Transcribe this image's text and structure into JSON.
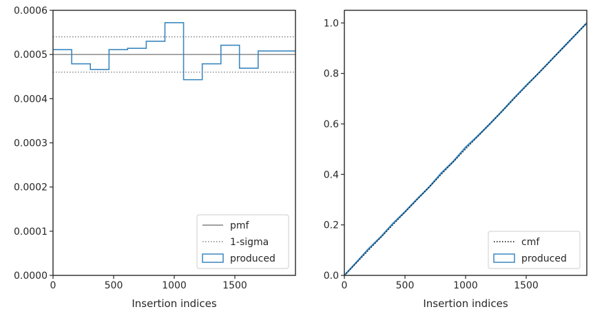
{
  "colors": {
    "produced": "#3a87bf",
    "pmf": "#808080",
    "sigma": "#808080",
    "cmf": "#000000",
    "axes": "#262626"
  },
  "chart_data": [
    {
      "type": "step",
      "xlabel": "Insertion indices",
      "ylabel": "",
      "xlim": [
        0,
        2000
      ],
      "ylim": [
        0,
        0.0006
      ],
      "xticks": [
        0,
        500,
        1000,
        1500
      ],
      "xtick_labels": [
        "0",
        "500",
        "1000",
        "1500"
      ],
      "yticks": [
        0,
        0.0001,
        0.0002,
        0.0003,
        0.0004,
        0.0005,
        0.0006
      ],
      "ytick_labels": [
        "0.0000",
        "0.0001",
        "0.0002",
        "0.0003",
        "0.0004",
        "0.0005",
        "0.0006"
      ],
      "legend_position": "bottom-right",
      "legend": [
        {
          "label": "pmf",
          "style": "solid",
          "color": "#808080"
        },
        {
          "label": "1-sigma",
          "style": "dotted",
          "color": "#808080"
        },
        {
          "label": "produced",
          "style": "box",
          "color": "#3a87bf"
        }
      ],
      "pmf": 0.0005,
      "sigma_band": [
        0.00046,
        0.00054
      ],
      "bin_edges": [
        0,
        154,
        308,
        462,
        615,
        769,
        923,
        1077,
        1231,
        1385,
        1538,
        1692,
        2000
      ],
      "values": [
        0.000511,
        0.000479,
        0.000466,
        0.000511,
        0.000514,
        0.00053,
        0.000572,
        0.000443,
        0.000479,
        0.000521,
        0.000469,
        0.000508
      ]
    },
    {
      "type": "line",
      "xlabel": "Insertion indices",
      "ylabel": "",
      "xlim": [
        0,
        2000
      ],
      "ylim": [
        0,
        1.05
      ],
      "xticks": [
        0,
        500,
        1000,
        1500
      ],
      "xtick_labels": [
        "0",
        "500",
        "1000",
        "1500"
      ],
      "yticks": [
        0,
        0.2,
        0.4,
        0.6,
        0.8,
        1.0
      ],
      "ytick_labels": [
        "0.0",
        "0.2",
        "0.4",
        "0.6",
        "0.8",
        "1.0"
      ],
      "legend_position": "bottom-right",
      "legend": [
        {
          "label": "cmf",
          "style": "dotted",
          "color": "#000000"
        },
        {
          "label": "produced",
          "style": "box",
          "color": "#3a87bf"
        }
      ],
      "cmf": {
        "x": [
          0,
          2000
        ],
        "y": [
          0,
          1.0
        ]
      },
      "produced": {
        "x": [
          0,
          100,
          200,
          300,
          400,
          500,
          600,
          700,
          800,
          900,
          1000,
          1100,
          1200,
          1300,
          1400,
          1500,
          1600,
          1700,
          1800,
          1900,
          2000
        ],
        "y": [
          0,
          0.052,
          0.105,
          0.152,
          0.205,
          0.252,
          0.302,
          0.35,
          0.405,
          0.452,
          0.507,
          0.552,
          0.6,
          0.65,
          0.702,
          0.752,
          0.8,
          0.85,
          0.9,
          0.95,
          1.0
        ]
      }
    }
  ]
}
